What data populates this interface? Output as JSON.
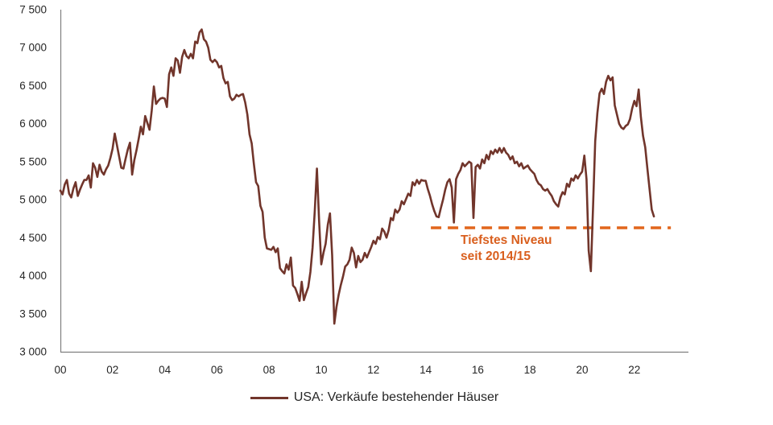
{
  "chart_data": {
    "type": "line",
    "title": "",
    "xlabel": "",
    "ylabel": "",
    "grid": false,
    "ylim": [
      3000,
      7500
    ],
    "x_axis": {
      "unit": "year (20xx)",
      "ticks": [
        {
          "offset": 0,
          "label": "00"
        },
        {
          "offset": 2,
          "label": "02"
        },
        {
          "offset": 4,
          "label": "04"
        },
        {
          "offset": 6,
          "label": "06"
        },
        {
          "offset": 8,
          "label": "08"
        },
        {
          "offset": 10,
          "label": "10"
        },
        {
          "offset": 12,
          "label": "12"
        },
        {
          "offset": 14,
          "label": "14"
        },
        {
          "offset": 16,
          "label": "16"
        },
        {
          "offset": 18,
          "label": "18"
        },
        {
          "offset": 20,
          "label": "20"
        },
        {
          "offset": 22,
          "label": "22"
        }
      ]
    },
    "y_axis": {
      "ticks": [
        {
          "value": 3000,
          "label": "3 000"
        },
        {
          "value": 3500,
          "label": "3 500"
        },
        {
          "value": 4000,
          "label": "4 000"
        },
        {
          "value": 4500,
          "label": "4 500"
        },
        {
          "value": 5000,
          "label": "5 000"
        },
        {
          "value": 5500,
          "label": "5 500"
        },
        {
          "value": 6000,
          "label": "6 000"
        },
        {
          "value": 6500,
          "label": "6 500"
        },
        {
          "value": 7000,
          "label": "7 000"
        },
        {
          "value": 7500,
          "label": "7 500"
        }
      ]
    },
    "series": [
      {
        "name": "USA: Verkäufe bestehender Häuser",
        "color": "#71352b",
        "start_year": 2000,
        "frequency": "monthly",
        "values": [
          5120,
          5070,
          5200,
          5260,
          5080,
          5030,
          5150,
          5230,
          5050,
          5130,
          5200,
          5260,
          5260,
          5320,
          5160,
          5480,
          5420,
          5300,
          5460,
          5370,
          5330,
          5400,
          5450,
          5550,
          5670,
          5870,
          5720,
          5570,
          5420,
          5410,
          5540,
          5660,
          5750,
          5330,
          5520,
          5650,
          5800,
          5960,
          5860,
          6100,
          6010,
          5920,
          6170,
          6490,
          6260,
          6300,
          6330,
          6340,
          6330,
          6220,
          6650,
          6740,
          6630,
          6860,
          6830,
          6670,
          6880,
          6970,
          6890,
          6860,
          6920,
          6860,
          7080,
          7060,
          7200,
          7240,
          7110,
          7080,
          7000,
          6840,
          6810,
          6840,
          6810,
          6740,
          6760,
          6600,
          6530,
          6550,
          6360,
          6310,
          6330,
          6380,
          6360,
          6380,
          6390,
          6280,
          6120,
          5860,
          5740,
          5470,
          5230,
          5180,
          4920,
          4840,
          4500,
          4360,
          4350,
          4340,
          4380,
          4310,
          4360,
          4100,
          4060,
          4030,
          4150,
          4080,
          4240,
          3870,
          3840,
          3760,
          3670,
          3920,
          3680,
          3770,
          3850,
          4050,
          4370,
          4850,
          5410,
          4720,
          4150,
          4300,
          4420,
          4670,
          4820,
          4270,
          3370,
          3590,
          3750,
          3880,
          3990,
          4120,
          4150,
          4210,
          4370,
          4300,
          4110,
          4260,
          4180,
          4210,
          4300,
          4240,
          4310,
          4380,
          4460,
          4420,
          4510,
          4480,
          4620,
          4580,
          4500,
          4600,
          4760,
          4730,
          4870,
          4830,
          4870,
          4980,
          4940,
          5010,
          5080,
          5050,
          5230,
          5190,
          5260,
          5210,
          5260,
          5250,
          5250,
          5140,
          5050,
          4940,
          4850,
          4780,
          4770,
          4890,
          5000,
          5130,
          5230,
          5270,
          5160,
          4700,
          5270,
          5340,
          5390,
          5480,
          5440,
          5470,
          5500,
          5480,
          4760,
          5430,
          5460,
          5410,
          5530,
          5480,
          5590,
          5530,
          5640,
          5600,
          5660,
          5620,
          5680,
          5620,
          5680,
          5620,
          5590,
          5530,
          5570,
          5480,
          5500,
          5440,
          5480,
          5410,
          5430,
          5450,
          5400,
          5370,
          5340,
          5260,
          5210,
          5190,
          5140,
          5120,
          5140,
          5090,
          5050,
          4980,
          4940,
          4910,
          5030,
          5100,
          5070,
          5210,
          5170,
          5280,
          5250,
          5320,
          5280,
          5330,
          5370,
          5580,
          5270,
          4330,
          4060,
          4900,
          5770,
          6140,
          6400,
          6460,
          6390,
          6550,
          6630,
          6570,
          6610,
          6240,
          6120,
          6000,
          5950,
          5930,
          5970,
          5990,
          6060,
          6200,
          6300,
          6230,
          6450,
          6090,
          5840,
          5690,
          5410,
          5140,
          4870,
          4780
        ]
      }
    ],
    "annotation": {
      "lines": [
        "Tiefstes Niveau",
        "seit 2014/15"
      ],
      "text_color": "#d95f1e",
      "dashed_line": {
        "value": 4630,
        "from_offset": 14.2,
        "to_offset": 23.4,
        "color": "#e2661c"
      }
    },
    "legend": {
      "position": "bottom-center",
      "label": "USA: Verkäufe bestehender Häuser",
      "swatch_color": "#71352b"
    }
  }
}
